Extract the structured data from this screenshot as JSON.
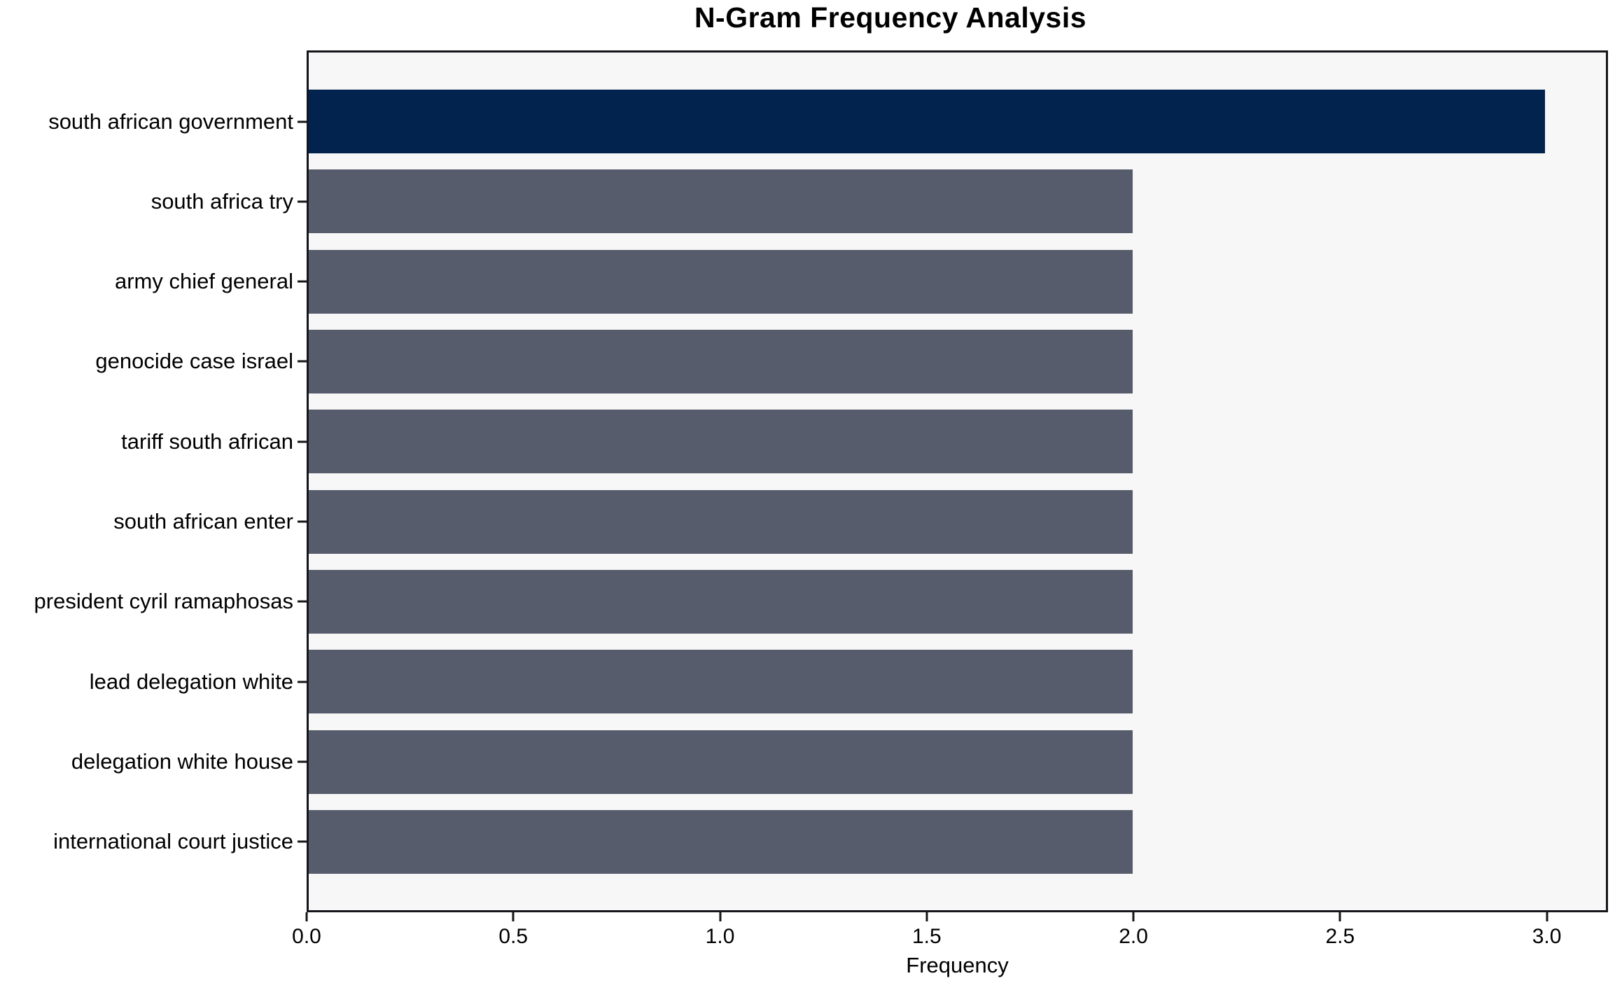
{
  "title": "N-Gram Frequency Analysis",
  "chart_data": {
    "type": "bar",
    "orientation": "horizontal",
    "title": "N-Gram Frequency Analysis",
    "xlabel": "Frequency",
    "ylabel": "",
    "categories": [
      "south african government",
      "south africa try",
      "army chief general",
      "genocide case israel",
      "tariff south african",
      "south african enter",
      "president cyril ramaphosas",
      "lead delegation white",
      "delegation white house",
      "international court justice"
    ],
    "values": [
      3,
      2,
      2,
      2,
      2,
      2,
      2,
      2,
      2,
      2
    ],
    "bar_colors": [
      "#02234d",
      "#565c6b",
      "#565c6b",
      "#565c6b",
      "#565c6b",
      "#565c6b",
      "#565c6b",
      "#565c6b",
      "#565c6b",
      "#565c6b"
    ],
    "xlim": [
      0,
      3.148
    ],
    "xtick_values": [
      0.0,
      0.5,
      1.0,
      1.5,
      2.0,
      2.5,
      3.0
    ],
    "xtick_labels": [
      "0.0",
      "0.5",
      "1.0",
      "1.5",
      "2.0",
      "2.5",
      "3.0"
    ],
    "grid": false,
    "legend": "none",
    "colors": {
      "highlight_bar": "#02234d",
      "base_bar": "#565c6b",
      "plot_background": "#f7f7f8",
      "figure_background": "#ffffff",
      "spine": "#15151a",
      "text": "#000000"
    }
  }
}
